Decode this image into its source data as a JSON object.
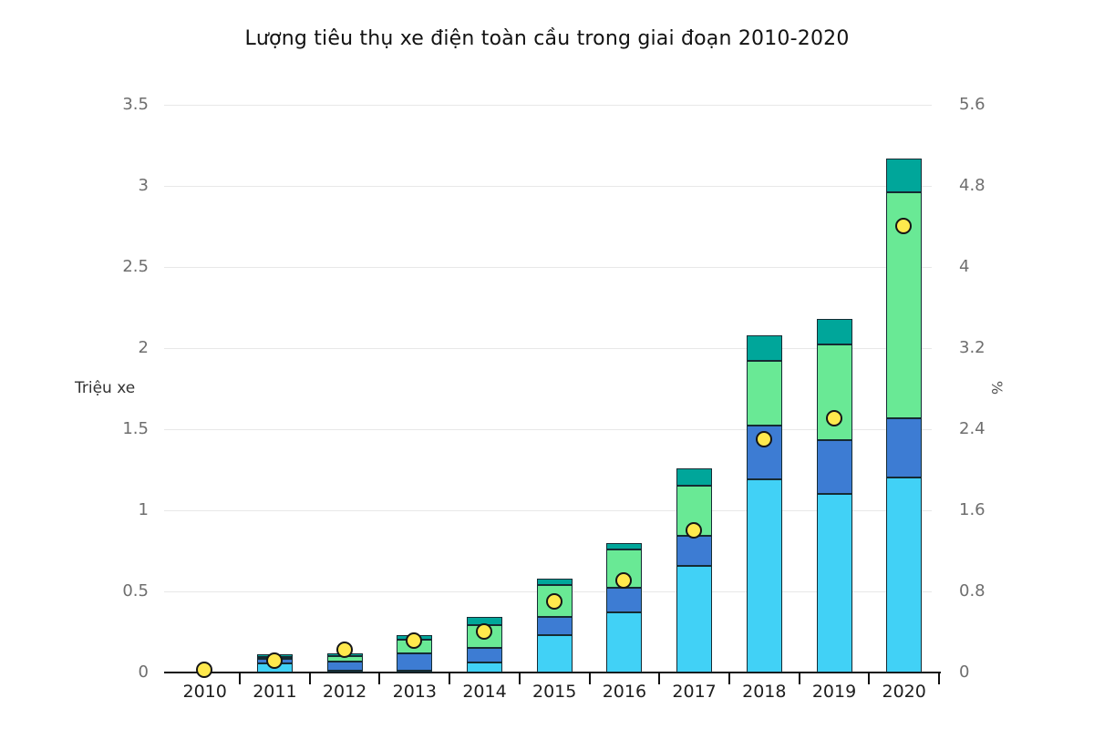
{
  "title": "Lượng tiêu thụ xe điện toàn cầu trong giai đoạn 2010-2020",
  "left_axis": {
    "label": "Triệu xe",
    "ticks": [
      3.5,
      3,
      2.5,
      2,
      1.5,
      1,
      0.5,
      0
    ],
    "max": 3.5
  },
  "right_axis": {
    "label": "%",
    "ticks": [
      5.6,
      4.8,
      4,
      3.2,
      2.4,
      1.6,
      0.8,
      0
    ],
    "max": 5.6
  },
  "colors": {
    "cyan": "#41d1f6",
    "blue": "#3d7cd3",
    "green": "#69e995",
    "teal": "#00a69a",
    "dot": "#ffe94d",
    "outline": "#152b33",
    "grid": "#e8e8e8"
  },
  "chart_data": {
    "type": "bar",
    "stacked": true,
    "title": "Lượng tiêu thụ xe điện toàn cầu trong giai đoạn 2010-2020",
    "categories": [
      "2010",
      "2011",
      "2012",
      "2013",
      "2014",
      "2015",
      "2016",
      "2017",
      "2018",
      "2019",
      "2020"
    ],
    "series": [
      {
        "name": "cyan",
        "color": "#41d1f6",
        "axis": "left",
        "values": [
          0.005,
          0.055,
          0.01,
          0.01,
          0.06,
          0.23,
          0.37,
          0.66,
          1.19,
          1.1,
          1.2
        ]
      },
      {
        "name": "blue",
        "color": "#3d7cd3",
        "axis": "left",
        "values": [
          0,
          0.03,
          0.06,
          0.11,
          0.09,
          0.11,
          0.15,
          0.18,
          0.33,
          0.33,
          0.37
        ]
      },
      {
        "name": "green",
        "color": "#69e995",
        "axis": "left",
        "values": [
          0,
          0.01,
          0.03,
          0.08,
          0.14,
          0.2,
          0.24,
          0.31,
          0.4,
          0.59,
          1.39
        ]
      },
      {
        "name": "teal",
        "color": "#00a69a",
        "axis": "left",
        "values": [
          0,
          0.015,
          0.02,
          0.03,
          0.05,
          0.04,
          0.04,
          0.11,
          0.16,
          0.16,
          0.21
        ]
      }
    ],
    "dot_series": {
      "name": "percent-share",
      "type": "scatter",
      "color": "#ffe94d",
      "axis": "right",
      "values": [
        0.02,
        0.11,
        0.22,
        0.31,
        0.4,
        0.7,
        0.9,
        1.4,
        2.3,
        2.5,
        4.4
      ]
    },
    "ylabel_left": "Triệu xe",
    "ylabel_right": "%",
    "ylim_left": [
      0,
      3.5
    ],
    "ylim_right": [
      0,
      5.6
    ],
    "grid": true,
    "legend": "none"
  }
}
